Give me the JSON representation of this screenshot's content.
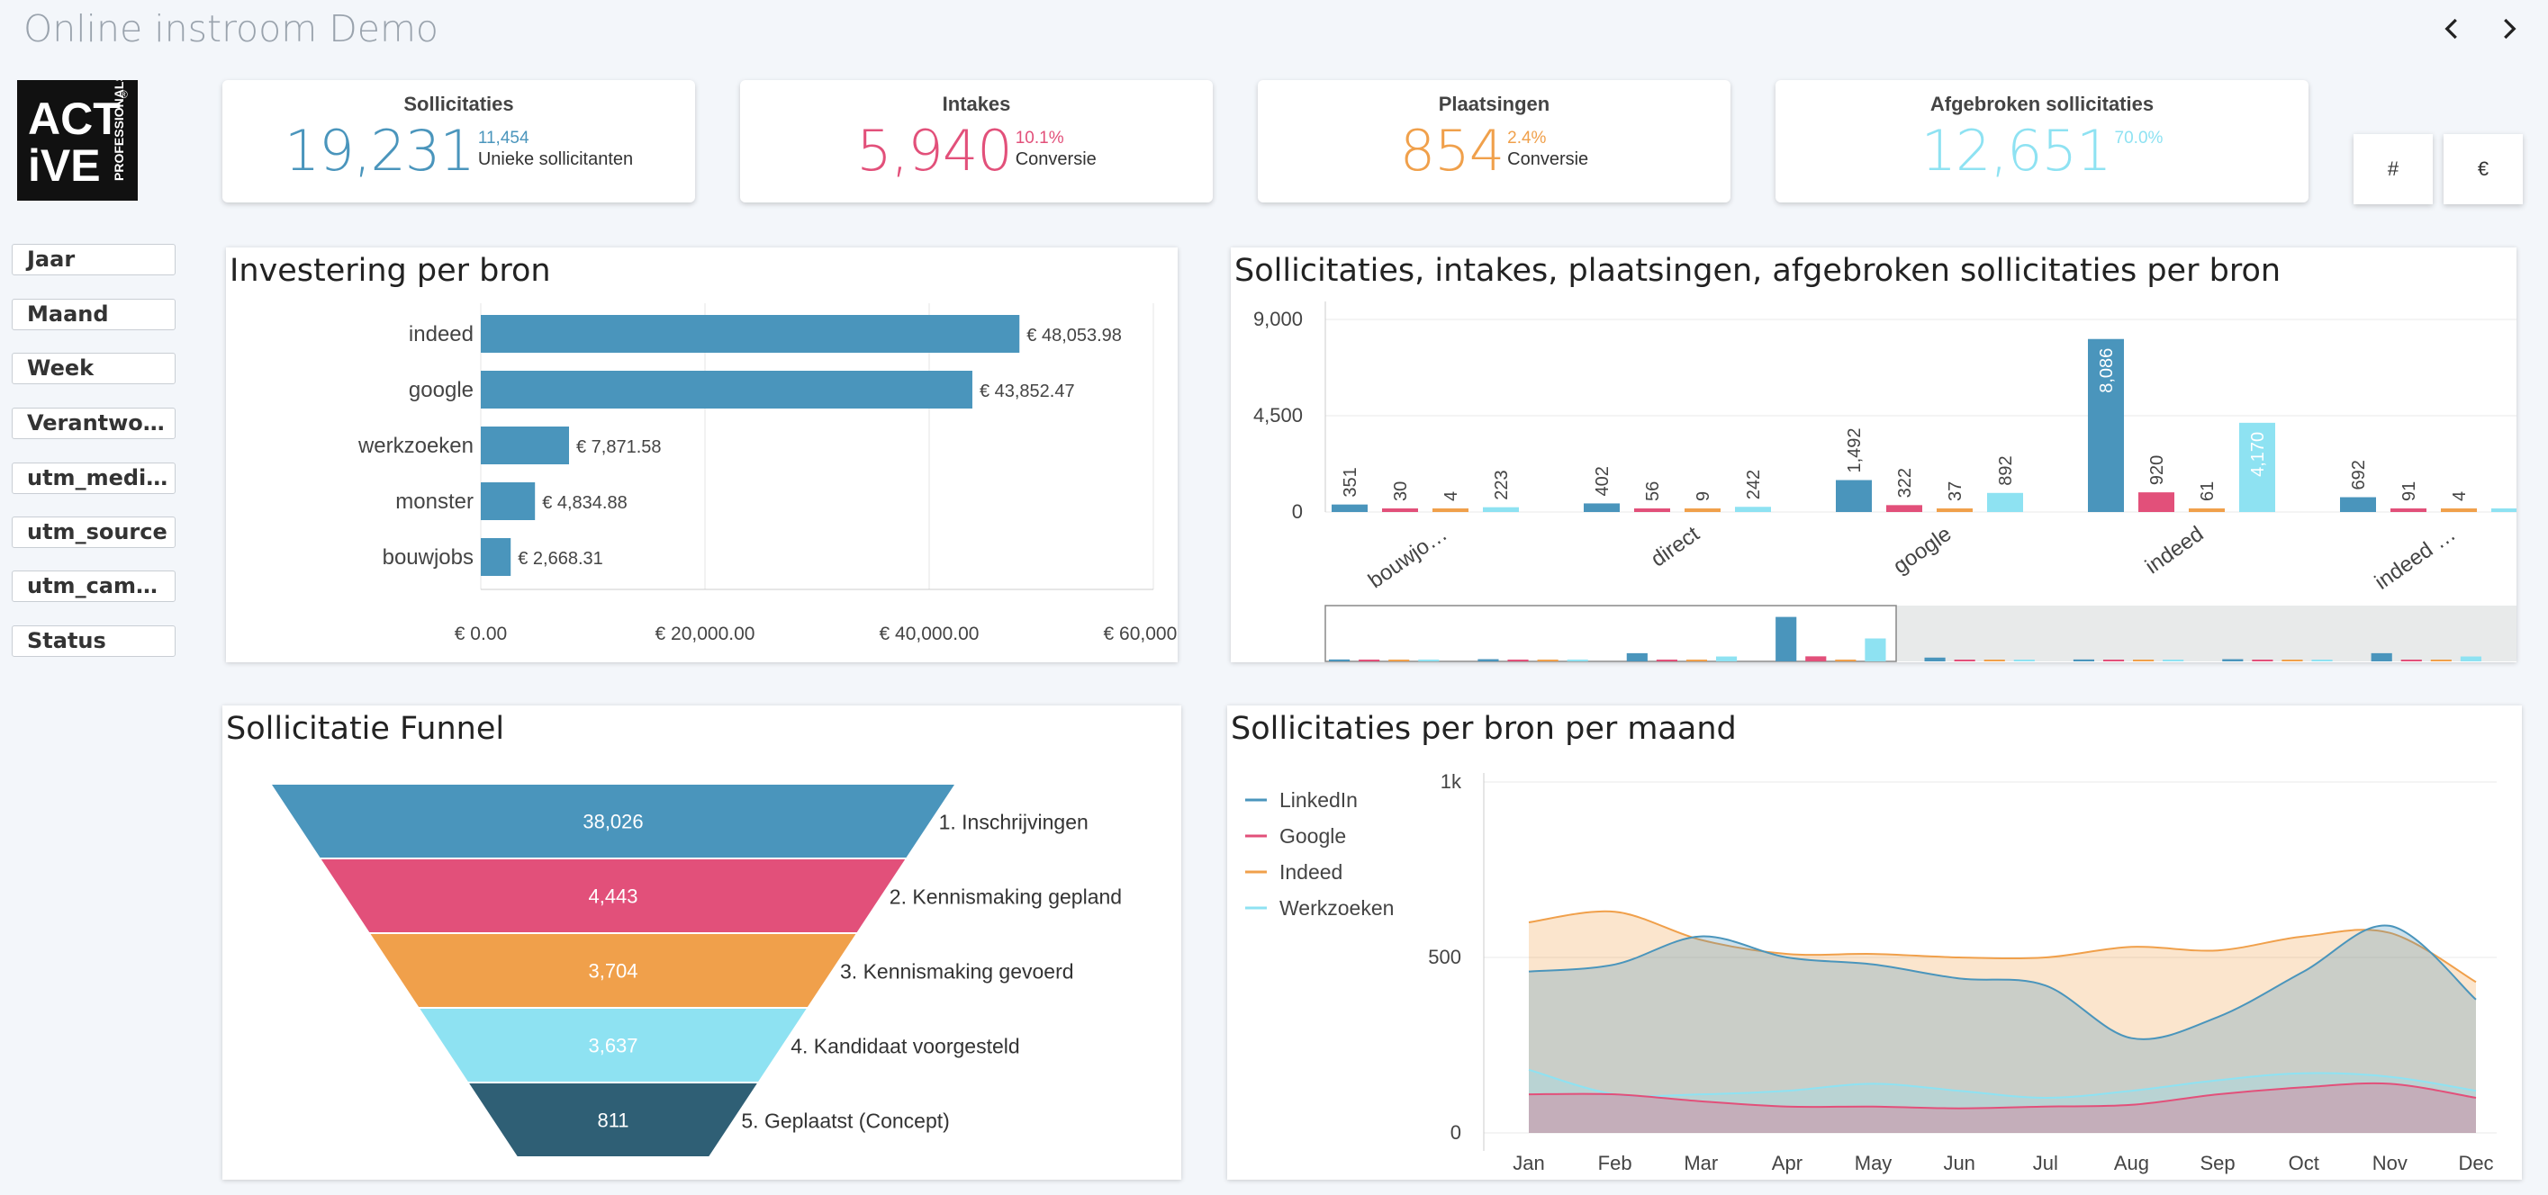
{
  "header": {
    "title": "Online instroom Demo",
    "prev_icon": "chevron-left-icon",
    "next_icon": "chevron-right-icon"
  },
  "logo": {
    "alt": "Active Professionals",
    "line1": "ACT",
    "line2": "iVE",
    "side": "PROFESSIONALS",
    "mark": "®"
  },
  "kpis": [
    {
      "title": "Sollicitaties",
      "value": "19,231",
      "small": "11,454",
      "sub": "Unieke sollicitanten",
      "color": "#4a95bc"
    },
    {
      "title": "Intakes",
      "value": "5,940",
      "small": "10.1%",
      "sub": "Conversie",
      "color": "#e2507a"
    },
    {
      "title": "Plaatsingen",
      "value": "854",
      "small": "2.4%",
      "sub": "Conversie",
      "color": "#f0a04b"
    },
    {
      "title": "Afgebroken sollicitaties",
      "value": "12,651",
      "small": "70.0%",
      "sub": "",
      "color": "#8ee2f2"
    }
  ],
  "toggles": {
    "count": "#",
    "euro": "€"
  },
  "filters": [
    "Jaar",
    "Maand",
    "Week",
    "Verantwo…",
    "utm_medi…",
    "utm_source",
    "utm_cam…",
    "Status"
  ],
  "panels": {
    "invest": "Investering per bron",
    "sources": "Sollicitaties, intakes, plaatsingen, afgebroken sollicitaties per bron",
    "funnel": "Sollicitatie Funnel",
    "monthly": "Sollicitaties per bron per maand"
  },
  "chart_data": [
    {
      "id": "invest",
      "type": "bar",
      "orientation": "horizontal",
      "title": "Investering per bron",
      "categories": [
        "indeed",
        "google",
        "werkzoeken",
        "monster",
        "bouwjobs"
      ],
      "values": [
        48053.98,
        43852.47,
        7871.58,
        4834.88,
        2668.31
      ],
      "labels": [
        "€ 48,053.98",
        "€ 43,852.47",
        "€ 7,871.58",
        "€ 4,834.88",
        "€ 2,668.31"
      ],
      "xlim": [
        0,
        60000
      ],
      "ticks": [
        "€ 0.00",
        "€ 20,000.00",
        "€ 40,000.00",
        "€ 60,000.00"
      ],
      "color": "#4a95bc"
    },
    {
      "id": "sources",
      "type": "bar",
      "title": "Sollicitaties, intakes, plaatsingen, afgebroken sollicitaties per bron",
      "categories": [
        "bouwjo…",
        "direct",
        "google",
        "indeed",
        "indeed …"
      ],
      "series": [
        {
          "name": "Sollicitaties",
          "color": "#4a95bc",
          "values": [
            351,
            402,
            1492,
            8086,
            692
          ]
        },
        {
          "name": "Intakes",
          "color": "#e2507a",
          "values": [
            30,
            56,
            322,
            920,
            91
          ]
        },
        {
          "name": "Plaatsingen",
          "color": "#f0a04b",
          "values": [
            4,
            9,
            37,
            61,
            4
          ]
        },
        {
          "name": "Afgebroken sollicitaties",
          "color": "#8ee2f2",
          "values": [
            223,
            242,
            892,
            4170,
            0
          ]
        }
      ],
      "ylim": [
        0,
        9000
      ],
      "yticks": [
        "0",
        "4,500",
        "9,000"
      ]
    },
    {
      "id": "funnel",
      "type": "funnel",
      "title": "Sollicitatie Funnel",
      "stages": [
        {
          "label": "1. Inschrijvingen",
          "value": "38,026",
          "color": "#4a95bc"
        },
        {
          "label": "2. Kennismaking gepland",
          "value": "4,443",
          "color": "#e2507a"
        },
        {
          "label": "3. Kennismaking gevoerd",
          "value": "3,704",
          "color": "#f0a04b"
        },
        {
          "label": "4. Kandidaat voorgesteld",
          "value": "3,637",
          "color": "#8ee2f2"
        },
        {
          "label": "5. Geplaatst (Concept)",
          "value": "811",
          "color": "#2f5f75"
        }
      ]
    },
    {
      "id": "monthly",
      "type": "area",
      "title": "Sollicitaties per bron per maand",
      "x": [
        "Jan",
        "Feb",
        "Mar",
        "Apr",
        "May",
        "Jun",
        "Jul",
        "Aug",
        "Sep",
        "Oct",
        "Nov",
        "Dec"
      ],
      "ylim": [
        0,
        1000
      ],
      "yticks": [
        "0",
        "500",
        "1k"
      ],
      "series": [
        {
          "name": "LinkedIn",
          "color": "#4a95bc",
          "values": [
            460,
            480,
            560,
            500,
            480,
            440,
            420,
            270,
            330,
            460,
            590,
            380
          ]
        },
        {
          "name": "Google",
          "color": "#e2507a",
          "values": [
            110,
            110,
            90,
            75,
            75,
            70,
            75,
            80,
            110,
            130,
            140,
            100
          ]
        },
        {
          "name": "Indeed",
          "color": "#f0a04b",
          "values": [
            600,
            630,
            550,
            510,
            510,
            500,
            500,
            530,
            520,
            560,
            570,
            430
          ]
        },
        {
          "name": "Werkzoeken",
          "color": "#8ee2f2",
          "values": [
            180,
            110,
            110,
            120,
            140,
            120,
            100,
            120,
            150,
            170,
            160,
            120
          ]
        }
      ]
    }
  ]
}
